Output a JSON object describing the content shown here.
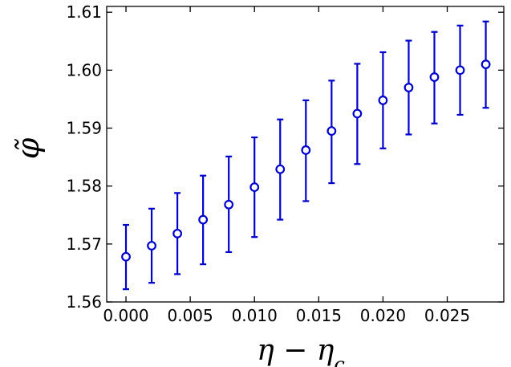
{
  "chart_data": {
    "type": "scatter",
    "title": "",
    "xlabel_parts": [
      {
        "text": "η − η",
        "sub": false
      },
      {
        "text": "c",
        "sub": true
      }
    ],
    "ylabel": "φ̃",
    "xlim": [
      -0.0015,
      0.0294
    ],
    "ylim": [
      1.56,
      1.611
    ],
    "x_ticks": [
      0.0,
      0.005,
      0.01,
      0.015,
      0.02,
      0.025
    ],
    "x_tick_labels": [
      "0.000",
      "0.005",
      "0.010",
      "0.015",
      "0.020",
      "0.025"
    ],
    "y_ticks": [
      1.56,
      1.57,
      1.58,
      1.59,
      1.6,
      1.61
    ],
    "y_tick_labels": [
      "1.56",
      "1.57",
      "1.58",
      "1.59",
      "1.60",
      "1.61"
    ],
    "grid": false,
    "series": [
      {
        "color": "#0000cc",
        "marker": "open-circle",
        "points": [
          {
            "x": 0.0,
            "y": 1.5678,
            "yerr_low": 1.5622,
            "yerr_high": 1.5733
          },
          {
            "x": 0.002,
            "y": 1.5697,
            "yerr_low": 1.5633,
            "yerr_high": 1.5761
          },
          {
            "x": 0.004,
            "y": 1.5718,
            "yerr_low": 1.5648,
            "yerr_high": 1.5788
          },
          {
            "x": 0.006,
            "y": 1.5742,
            "yerr_low": 1.5665,
            "yerr_high": 1.5818
          },
          {
            "x": 0.008,
            "y": 1.5768,
            "yerr_low": 1.5686,
            "yerr_high": 1.5851
          },
          {
            "x": 0.01,
            "y": 1.5798,
            "yerr_low": 1.5712,
            "yerr_high": 1.5884
          },
          {
            "x": 0.012,
            "y": 1.5829,
            "yerr_low": 1.5742,
            "yerr_high": 1.5915
          },
          {
            "x": 0.014,
            "y": 1.5862,
            "yerr_low": 1.5774,
            "yerr_high": 1.5948
          },
          {
            "x": 0.016,
            "y": 1.5895,
            "yerr_low": 1.5805,
            "yerr_high": 1.5982
          },
          {
            "x": 0.018,
            "y": 1.5925,
            "yerr_low": 1.5838,
            "yerr_high": 1.6011
          },
          {
            "x": 0.02,
            "y": 1.5948,
            "yerr_low": 1.5865,
            "yerr_high": 1.6031
          },
          {
            "x": 0.022,
            "y": 1.597,
            "yerr_low": 1.5889,
            "yerr_high": 1.6051
          },
          {
            "x": 0.024,
            "y": 1.5988,
            "yerr_low": 1.5908,
            "yerr_high": 1.6066
          },
          {
            "x": 0.026,
            "y": 1.6,
            "yerr_low": 1.5923,
            "yerr_high": 1.6077
          },
          {
            "x": 0.028,
            "y": 1.601,
            "yerr_low": 1.5935,
            "yerr_high": 1.6084
          }
        ]
      }
    ]
  }
}
